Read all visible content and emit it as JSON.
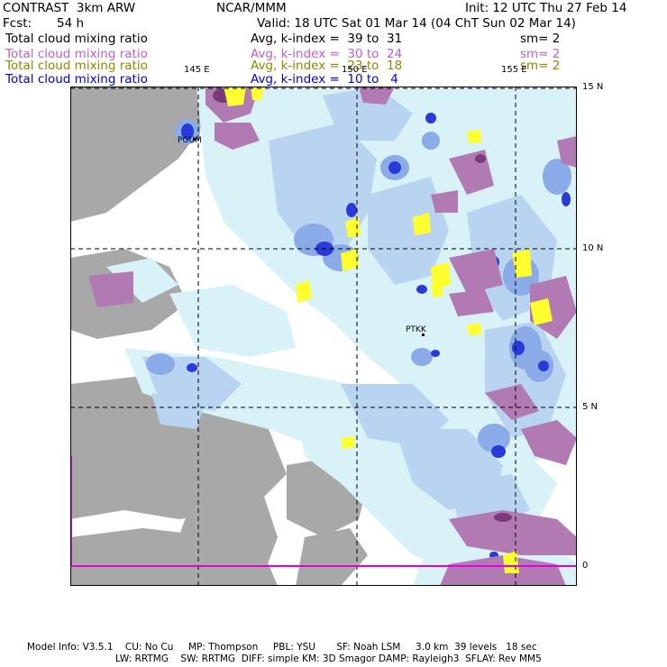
{
  "header": {
    "model": "CONTRAST  3km ARW",
    "center": "NCAR/MMM",
    "init": "Init: 12 UTC Thu 27 Feb 14",
    "fcst_label": "Fcst:",
    "fcst_value": "54 h",
    "valid": "Valid: 18 UTC Sat 01 Mar 14 (04 ChT Sun 02 Mar 14)"
  },
  "fields": [
    {
      "name": "Total cloud mixing ratio",
      "range": "Avg, k-index =  39 to  31",
      "sm": "sm= 2",
      "color": "#000000"
    },
    {
      "name": "Total cloud mixing ratio",
      "range": "Avg, k-index =  30 to  24",
      "sm": "sm= 2",
      "color": "#c060c0"
    },
    {
      "name": "Total cloud mixing ratio",
      "range": "Avg, k-index =  23 to  18",
      "sm": "sm= 2",
      "color": "#8a8a00"
    },
    {
      "name": "Total cloud mixing ratio",
      "range": "Avg, k-index =  10 to   4",
      "sm": "",
      "color": "#0000dd"
    }
  ],
  "map": {
    "lon_labels": [
      "145 E",
      "150 E",
      "155 E"
    ],
    "lat_labels": [
      "15 N",
      "10 N",
      "5 N",
      "0"
    ],
    "stations": [
      "PGUM",
      "PTKK"
    ],
    "colors": {
      "gray": "#a8a8a8",
      "light_cyan": "#d8f2f8",
      "light_blue": "#b8d4f0",
      "mid_blue": "#8aaae8",
      "dark_blue": "#2a3ad8",
      "purple": "#b27ab2",
      "dark_purple": "#7a3a7a",
      "yellow": "#ffff30",
      "magenta_line": "#e000e0"
    }
  },
  "footer": {
    "line1": "Model Info: V3.5.1    CU: No Cu     MP: Thompson     PBL: YSU       SF: Noah LSM     3.0 km  39 levels   18 sec",
    "line2": "LW: RRTMG    SW: RRTMG  DIFF: simple KM: 3D Smagor DAMP: Rayleigh3  SFLAY: Rev MM5"
  }
}
